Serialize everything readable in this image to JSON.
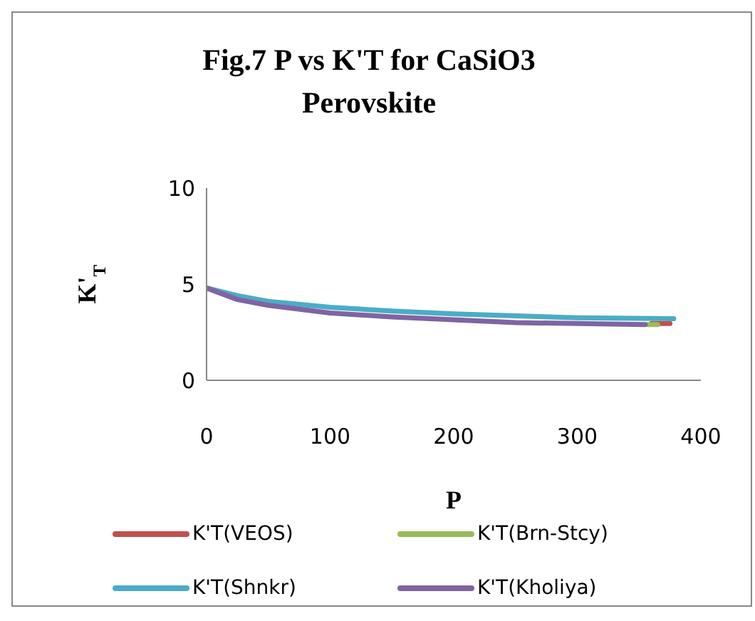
{
  "chart_data": {
    "type": "line",
    "title": "Fig.7 P vs K'T  for CaSiO3 Perovskite",
    "xlabel": "P",
    "ylabel": "K'$_{T}$",
    "xlim": [
      0,
      400
    ],
    "xticks": [
      0,
      100,
      200,
      300,
      400
    ],
    "ylim": [
      0,
      10
    ],
    "yticks": [
      0,
      5,
      10
    ],
    "grid": false,
    "legend": "bottom",
    "marker": "none",
    "line_style": "solid",
    "series": [
      {
        "name": "K'T(VEOS)",
        "color": "#c0504d",
        "x": [
          360,
          375
        ],
        "values": [
          2.95,
          2.95
        ]
      },
      {
        "name": "K'T(Brn-Stcy)",
        "color": "#9bbb59",
        "x": [
          357,
          365
        ],
        "values": [
          2.9,
          2.9
        ]
      },
      {
        "name": "K'T(Shnkr)",
        "color": "#4bacc6",
        "x": [
          0,
          25,
          50,
          100,
          150,
          200,
          250,
          300,
          378
        ],
        "values": [
          4.8,
          4.4,
          4.1,
          3.8,
          3.6,
          3.45,
          3.35,
          3.25,
          3.2
        ]
      },
      {
        "name": "K'T(Kholiya)",
        "color": "#8064a2",
        "x": [
          0,
          25,
          50,
          100,
          150,
          200,
          250,
          300,
          355
        ],
        "values": [
          4.8,
          4.2,
          3.9,
          3.5,
          3.3,
          3.15,
          3.0,
          2.95,
          2.9
        ]
      }
    ]
  }
}
